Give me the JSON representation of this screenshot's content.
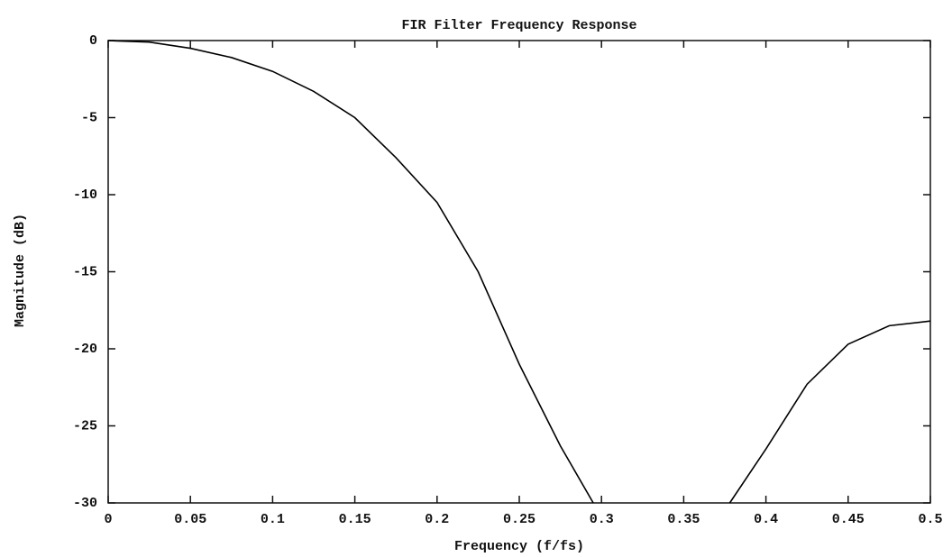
{
  "chart_data": {
    "type": "line",
    "title": "FIR Filter Frequency Response",
    "x_label": "Frequency (f/fs)",
    "y_label": "Magnitude (dB)",
    "x": [
      0,
      0.025,
      0.05,
      0.075,
      0.1,
      0.125,
      0.15,
      0.175,
      0.2,
      0.225,
      0.25,
      0.275,
      0.295,
      0.3,
      0.378,
      0.4,
      0.425,
      0.45,
      0.475,
      0.5
    ],
    "series": [
      {
        "color": "#000000",
        "values": [
          0,
          -0.1,
          -0.5,
          -1.1,
          -2.0,
          -3.3,
          -5.0,
          -7.6,
          -10.5,
          -15.0,
          -21.0,
          -26.3,
          -30,
          null,
          -30,
          -26.5,
          -22.3,
          -19.7,
          -18.5,
          -18.2
        ]
      }
    ],
    "xlim": [
      0,
      0.5
    ],
    "ylim": [
      -30,
      0
    ],
    "xticks": [
      0,
      0.05,
      0.1,
      0.15,
      0.2,
      0.25,
      0.3,
      0.35,
      0.4,
      0.45,
      0.5
    ],
    "yticks": [
      0,
      -5,
      -10,
      -15,
      -20,
      -25,
      -30
    ]
  }
}
